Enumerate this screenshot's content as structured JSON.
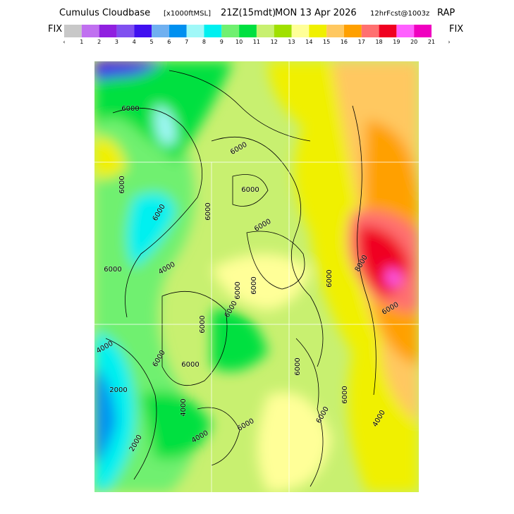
{
  "header": {
    "title": "Cumulus Cloudbase",
    "units": "[x1000ftMSL]",
    "valid_time": "21Z(15mdt)",
    "date": "MON 13 Apr 2026",
    "forecast": "12hrFcst@1003z",
    "model": "RAP"
  },
  "colorbar": {
    "left_label": "FIX",
    "right_label": "FIX",
    "colors": [
      "#c8c8c8",
      "#c070f0",
      "#9020e0",
      "#8050f0",
      "#4010f0",
      "#70b0f0",
      "#0090f0",
      "#a0f8f8",
      "#00f0f0",
      "#70f070",
      "#00e040",
      "#c8f070",
      "#a0e000",
      "#ffff98",
      "#f0f000",
      "#ffc860",
      "#ffa000",
      "#ff7070",
      "#f00020",
      "#ff60ff",
      "#f000c0"
    ],
    "labels": [
      "‹",
      "1",
      "2",
      "3",
      "4",
      "5",
      "6",
      "7",
      "8",
      "9",
      "10",
      "11",
      "12",
      "13",
      "14",
      "15",
      "16",
      "17",
      "18",
      "19",
      "20",
      "21",
      "›"
    ]
  },
  "map": {
    "contour_labels": [
      "6000",
      "6000",
      "6000",
      "6000",
      "6000",
      "6000",
      "6000",
      "4000",
      "6000",
      "6000",
      "6000",
      "8000",
      "6000",
      "6000",
      "6000",
      "6000",
      "6000",
      "4000",
      "6000",
      "2000",
      "4000",
      "6000",
      "4000",
      "6000",
      "6000",
      "6000",
      "4000",
      "2000"
    ]
  }
}
